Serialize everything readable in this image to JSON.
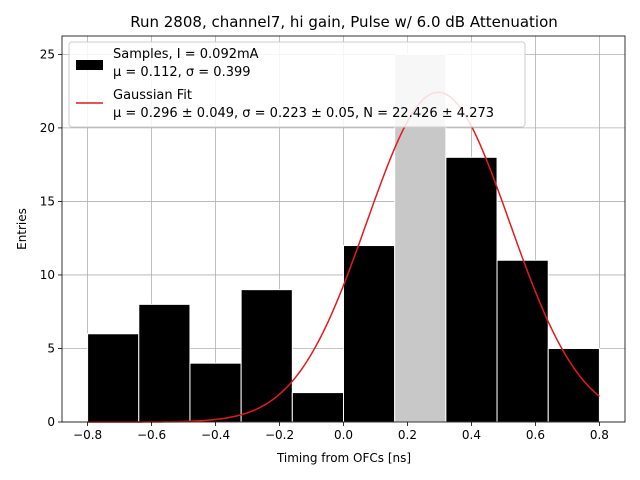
{
  "chart_data": {
    "type": "bar",
    "title": "Run 2808, channel7, hi gain, Pulse w/ 6.0 dB Attenuation",
    "xlabel": "Timing from OFCs [ns]",
    "ylabel": "Entries",
    "xlim": [
      -0.88,
      0.88
    ],
    "ylim": [
      0,
      26.25
    ],
    "xticks": [
      -0.8,
      -0.6,
      -0.4,
      -0.2,
      0.0,
      0.2,
      0.4,
      0.6,
      0.8
    ],
    "xtick_labels": [
      "−0.8",
      "−0.6",
      "−0.4",
      "−0.2",
      "0.0",
      "0.2",
      "0.4",
      "0.6",
      "0.8"
    ],
    "yticks": [
      0,
      5,
      10,
      15,
      20,
      25
    ],
    "ytick_labels": [
      "0",
      "5",
      "10",
      "15",
      "20",
      "25"
    ],
    "grid": true,
    "histogram": {
      "bin_edges": [
        -0.8,
        -0.64,
        -0.48,
        -0.32,
        -0.16,
        0.0,
        0.16,
        0.32,
        0.48,
        0.64,
        0.8
      ],
      "counts": [
        6,
        8,
        4,
        9,
        2,
        12,
        25,
        18,
        11,
        5
      ],
      "color": "#000000",
      "highlight_bin_index": 6,
      "highlight_color": "#c8c8c8",
      "edge_color": "#ffffff"
    },
    "fit": {
      "type": "gaussian",
      "mu": 0.296,
      "sigma": 0.223,
      "amplitude": 22.426,
      "x_range": [
        -0.8,
        0.8
      ],
      "color": "#e41a1c"
    },
    "legend": {
      "position": "top-left",
      "entries": [
        {
          "kind": "patch",
          "color": "#000000",
          "line1": "Samples, I = 0.092mA",
          "line2": "μ = 0.112, σ = 0.399"
        },
        {
          "kind": "line",
          "color": "#e41a1c",
          "line1": "Gaussian Fit",
          "line2": "μ = 0.296 ± 0.049, σ = 0.223 ± 0.05, N = 22.426 ± 4.273"
        }
      ]
    }
  }
}
